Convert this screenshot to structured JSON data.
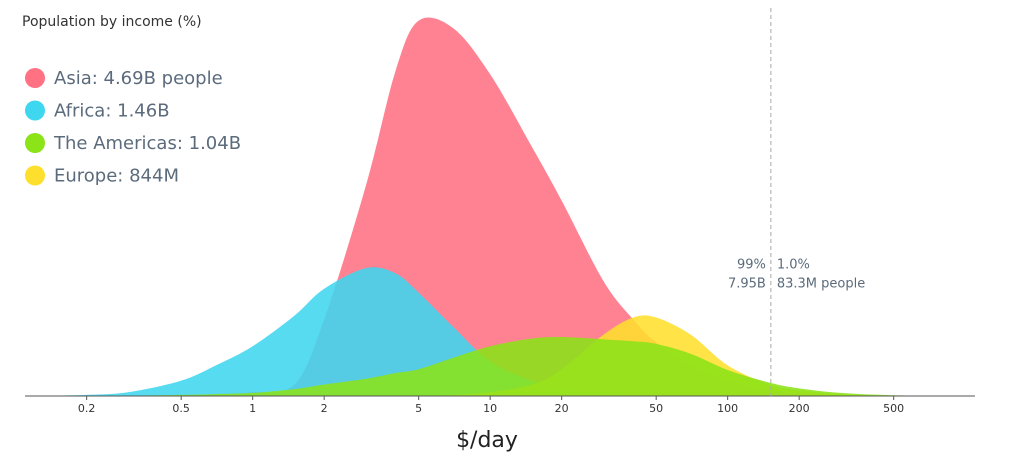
{
  "chart_data": {
    "type": "area",
    "title": "Population by income (%)",
    "x_label": "$/day",
    "log_x": true,
    "xlim": [
      0.11,
      1100
    ],
    "xticks": [
      0.2,
      0.5,
      1,
      2,
      5,
      10,
      20,
      50,
      100,
      200,
      500
    ],
    "ylim": [
      0,
      100
    ],
    "x": [
      0.11,
      0.2,
      0.3,
      0.5,
      0.7,
      1,
      1.5,
      2,
      3,
      4,
      5,
      7,
      10,
      15,
      20,
      30,
      40,
      50,
      70,
      100,
      150,
      200,
      300,
      500,
      1100
    ],
    "series": [
      {
        "name": "Asia: 4.69B people",
        "color": "#ff7183",
        "values": [
          0,
          0,
          0,
          0.2,
          0.5,
          1,
          3,
          20,
          55,
          85,
          98,
          96,
          84,
          65,
          51,
          30,
          20,
          14,
          8,
          4,
          1.5,
          0.8,
          0.3,
          0.1,
          0
        ]
      },
      {
        "name": "Africa: 1.46B",
        "color": "#3fd6ef",
        "values": [
          0,
          0.3,
          1,
          4,
          8,
          13,
          21,
          28,
          33.4,
          32,
          27,
          18,
          9,
          4,
          2,
          1,
          0.5,
          0.3,
          0.1,
          0,
          0,
          0,
          0,
          0,
          0
        ]
      },
      {
        "name": "Europe: 844M",
        "color": "#ffdf2e",
        "values": [
          0,
          0,
          0,
          0,
          0,
          0,
          0,
          0,
          0,
          0,
          0,
          0.3,
          1,
          3,
          7,
          16,
          20.5,
          20.5,
          16,
          8,
          3,
          1.5,
          0.5,
          0.1,
          0
        ]
      },
      {
        "name": "The Americas: 1.04B",
        "color": "#8be318",
        "values": [
          0,
          0,
          0.1,
          0.3,
          0.5,
          0.8,
          1.8,
          3,
          4.5,
          6,
          7,
          10,
          13,
          15,
          15.4,
          14.8,
          14.3,
          13.6,
          11,
          6.8,
          3.5,
          2,
          0.8,
          0.2,
          0
        ]
      }
    ],
    "legend_order": [
      0,
      1,
      3,
      2
    ],
    "marker": {
      "x": 152,
      "left_share": "99%",
      "left_count": "7.95B",
      "right_share": "1.0%",
      "right_count": "83.3M people"
    }
  }
}
